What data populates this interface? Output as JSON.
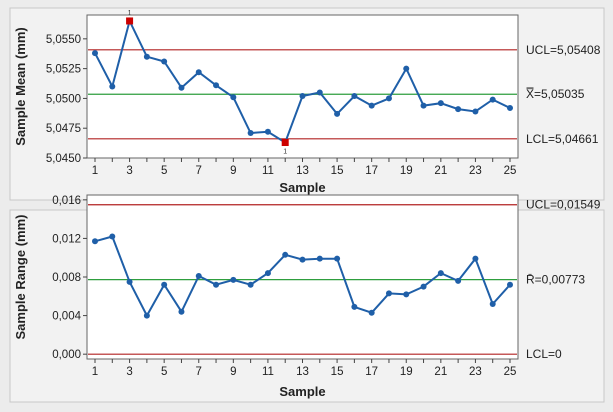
{
  "chart_data": [
    {
      "type": "line",
      "title": "",
      "xlabel": "Sample",
      "ylabel": "Sample Mean (mm)",
      "x": [
        1,
        2,
        3,
        4,
        5,
        6,
        7,
        8,
        9,
        10,
        11,
        12,
        13,
        14,
        15,
        16,
        17,
        18,
        19,
        20,
        21,
        22,
        23,
        24,
        25
      ],
      "x_ticks": [
        "1",
        "3",
        "5",
        "7",
        "9",
        "11",
        "13",
        "15",
        "17",
        "19",
        "21",
        "23",
        "25"
      ],
      "ylim": [
        5.045,
        5.057
      ],
      "y_ticks": [
        "5,0450",
        "5,0475",
        "5,0500",
        "5,0525",
        "5,0550"
      ],
      "y_tick_values": [
        5.045,
        5.0475,
        5.05,
        5.0525,
        5.055
      ],
      "series": [
        {
          "values": [
            5.0538,
            5.051,
            5.0565,
            5.0535,
            5.0531,
            5.0509,
            5.0522,
            5.0511,
            5.0501,
            5.0471,
            5.0472,
            5.0463,
            5.0502,
            5.0505,
            5.0487,
            5.0502,
            5.0494,
            5.05,
            5.0525,
            5.0494,
            5.0496,
            5.0491,
            5.0489,
            5.0499,
            5.0492
          ],
          "color": "#1f5fa8"
        }
      ],
      "control_lines": [
        {
          "label": "UCL=5,05408",
          "value": 5.05408,
          "color": "#b22222"
        },
        {
          "label": "X̿=5,05035",
          "value": 5.05035,
          "color": "#2e9e3e"
        },
        {
          "label": "LCL=5,04661",
          "value": 5.04661,
          "color": "#b22222"
        }
      ],
      "flagged_points": [
        {
          "x": 3,
          "label": "1"
        },
        {
          "x": 12,
          "label": "1"
        }
      ],
      "flag_color": "#cc0000",
      "grid": false
    },
    {
      "type": "line",
      "title": "",
      "xlabel": "Sample",
      "ylabel": "Sample Range (mm)",
      "x": [
        1,
        2,
        3,
        4,
        5,
        6,
        7,
        8,
        9,
        10,
        11,
        12,
        13,
        14,
        15,
        16,
        17,
        18,
        19,
        20,
        21,
        22,
        23,
        24,
        25
      ],
      "x_ticks": [
        "1",
        "3",
        "5",
        "7",
        "9",
        "11",
        "13",
        "15",
        "17",
        "19",
        "21",
        "23",
        "25"
      ],
      "ylim": [
        -0.0005,
        0.0165
      ],
      "y_ticks": [
        "0,000",
        "0,004",
        "0,008",
        "0,012",
        "0,016"
      ],
      "y_tick_values": [
        0,
        0.004,
        0.008,
        0.012,
        0.016
      ],
      "series": [
        {
          "values": [
            0.0117,
            0.0122,
            0.0075,
            0.004,
            0.0072,
            0.0044,
            0.0081,
            0.0072,
            0.0077,
            0.0072,
            0.0084,
            0.0103,
            0.0098,
            0.0099,
            0.0099,
            0.0049,
            0.0043,
            0.0063,
            0.0062,
            0.007,
            0.0084,
            0.0076,
            0.0099,
            0.0052,
            0.0072
          ],
          "color": "#1f5fa8"
        }
      ],
      "control_lines": [
        {
          "label": "UCL=0,01549",
          "value": 0.01549,
          "color": "#b22222"
        },
        {
          "label": "R̄=0,00773",
          "value": 0.00773,
          "color": "#2e9e3e"
        },
        {
          "label": "LCL=0",
          "value": 0,
          "color": "#b22222"
        }
      ],
      "grid": false
    }
  ]
}
